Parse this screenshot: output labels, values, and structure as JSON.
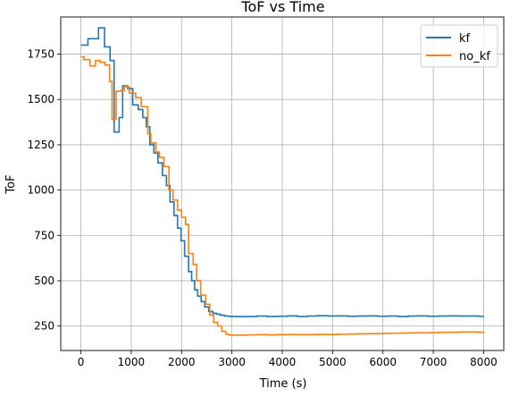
{
  "chart_data": {
    "type": "line",
    "title": "ToF vs Time",
    "xlabel": "Time (s)",
    "ylabel": "ToF",
    "xlim": [
      -400,
      8400
    ],
    "ylim": [
      115,
      1955
    ],
    "xticks": [
      0,
      1000,
      2000,
      3000,
      4000,
      5000,
      6000,
      7000,
      8000
    ],
    "yticks": [
      250,
      500,
      750,
      1000,
      1250,
      1500,
      1750
    ],
    "grid": true,
    "legend_position": "upper right",
    "series": [
      {
        "name": "kf",
        "color": "#1f77b4",
        "step": true,
        "x": [
          0,
          140,
          350,
          470,
          580,
          660,
          760,
          830,
          930,
          1030,
          1140,
          1230,
          1300,
          1370,
          1450,
          1530,
          1620,
          1700,
          1770,
          1850,
          1920,
          1990,
          2060,
          2140,
          2200,
          2260,
          2320,
          2390,
          2460,
          2540,
          2620,
          2700,
          2770,
          2850,
          2950,
          3100,
          3300,
          3500,
          3700,
          3900,
          4100,
          4300,
          4500,
          4700,
          4900,
          5100,
          5300,
          5500,
          5700,
          5900,
          6100,
          6300,
          6500,
          6700,
          6900,
          7100,
          7300,
          7500,
          7700,
          7900,
          8000
        ],
        "y": [
          1800,
          1835,
          1895,
          1790,
          1715,
          1320,
          1400,
          1575,
          1560,
          1470,
          1445,
          1400,
          1350,
          1250,
          1205,
          1150,
          1080,
          1025,
          935,
          860,
          790,
          720,
          635,
          550,
          500,
          450,
          415,
          385,
          355,
          330,
          320,
          315,
          310,
          305,
          303,
          302,
          303,
          305,
          303,
          304,
          306,
          303,
          305,
          307,
          305,
          306,
          304,
          305,
          306,
          304,
          305,
          303,
          305,
          306,
          304,
          305,
          306,
          305,
          305,
          304,
          305
        ]
      },
      {
        "name": "no_kf",
        "color": "#ff7f0e",
        "step": true,
        "x": [
          0,
          60,
          180,
          290,
          380,
          480,
          570,
          620,
          700,
          790,
          860,
          960,
          1090,
          1200,
          1330,
          1390,
          1490,
          1560,
          1650,
          1750,
          1830,
          1920,
          2000,
          2080,
          2140,
          2230,
          2300,
          2380,
          2480,
          2560,
          2640,
          2720,
          2800,
          2880,
          2940,
          3100,
          3300,
          3500,
          3700,
          3900,
          4100,
          4300,
          4500,
          4700,
          4900,
          5100,
          5300,
          5500,
          5700,
          5900,
          6100,
          6300,
          6500,
          6700,
          6900,
          7100,
          7300,
          7500,
          7700,
          7900,
          8000
        ],
        "y": [
          1735,
          1720,
          1685,
          1715,
          1705,
          1690,
          1600,
          1390,
          1545,
          1550,
          1570,
          1535,
          1510,
          1460,
          1310,
          1260,
          1210,
          1180,
          1130,
          1000,
          945,
          890,
          850,
          810,
          650,
          590,
          500,
          420,
          370,
          310,
          270,
          250,
          220,
          205,
          200,
          200,
          201,
          202,
          201,
          202,
          203,
          202,
          203,
          204,
          203,
          205,
          206,
          207,
          208,
          209,
          210,
          211,
          212,
          213,
          214,
          215,
          216,
          217,
          217,
          216,
          217
        ]
      }
    ]
  }
}
